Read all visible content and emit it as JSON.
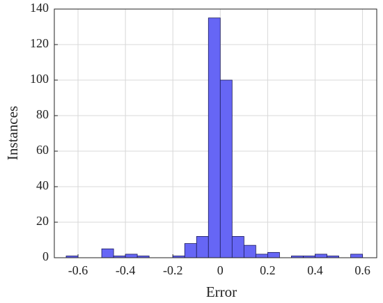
{
  "chart_data": {
    "type": "histogram",
    "xlabel": "Error",
    "ylabel": "Instances",
    "bins": [
      -0.65,
      -0.6,
      -0.55,
      -0.5,
      -0.45,
      -0.4,
      -0.35,
      -0.3,
      -0.25,
      -0.2,
      -0.15,
      -0.1,
      -0.05,
      0,
      0.05,
      0.1,
      0.15,
      0.2,
      0.25,
      0.3,
      0.35,
      0.4,
      0.45,
      0.5,
      0.55,
      0.6
    ],
    "counts": [
      1,
      0,
      0,
      5,
      1,
      2,
      1,
      0,
      0,
      1,
      8,
      12,
      135,
      100,
      12,
      7,
      2,
      3,
      0,
      1,
      1,
      2,
      1,
      0,
      2
    ],
    "color": "#6666f5",
    "xlim": [
      -0.7,
      0.66
    ],
    "ylim": [
      0,
      140
    ],
    "xticks": [
      -0.6,
      -0.4,
      -0.2,
      0,
      0.2,
      0.4,
      0.6
    ],
    "yticks": [
      0,
      20,
      40,
      60,
      80,
      100,
      120,
      140
    ],
    "grid": true
  }
}
